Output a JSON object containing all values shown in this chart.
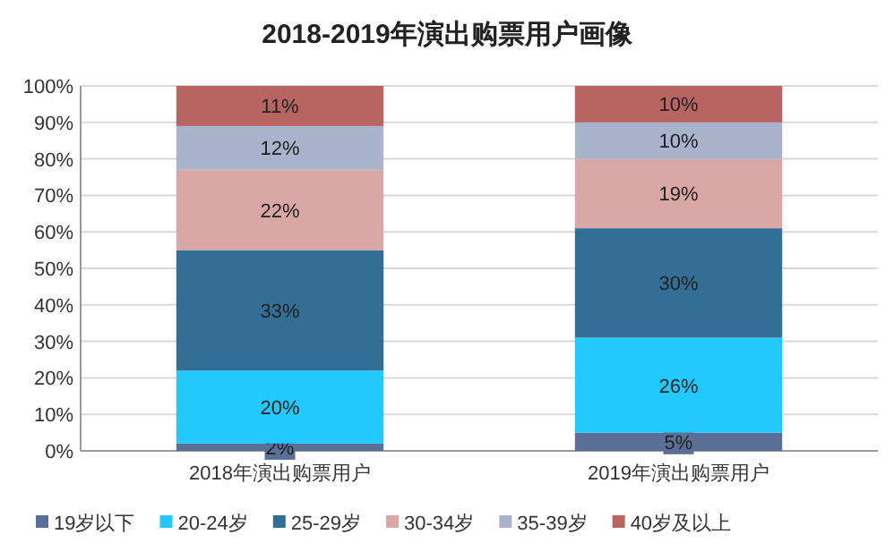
{
  "chart_data": {
    "type": "bar",
    "stacked": true,
    "title": "2018-2019年演出购票用户画像",
    "categories": [
      "2018年演出购票用户",
      "2019年演出购票用户"
    ],
    "series": [
      {
        "name": "19岁以下",
        "color": "#5a6f96",
        "values": [
          2,
          5
        ],
        "value_labels": [
          "2%",
          "5%"
        ]
      },
      {
        "name": "20-24岁",
        "color": "#22c8ff",
        "values": [
          20,
          26
        ],
        "value_labels": [
          "20%",
          "26%"
        ]
      },
      {
        "name": "25-29岁",
        "color": "#336f94",
        "values": [
          33,
          30
        ],
        "value_labels": [
          "33%",
          "30%"
        ]
      },
      {
        "name": "30-34岁",
        "color": "#d9a7a6",
        "values": [
          22,
          19
        ],
        "value_labels": [
          "22%",
          "19%"
        ]
      },
      {
        "name": "35-39岁",
        "color": "#aab3cc",
        "values": [
          12,
          10
        ],
        "value_labels": [
          "12%",
          "10%"
        ]
      },
      {
        "name": "40岁及以上",
        "color": "#b86463",
        "values": [
          11,
          10
        ],
        "value_labels": [
          "11%",
          "10%"
        ]
      }
    ],
    "ylim": [
      0,
      100
    ],
    "yticks": [
      {
        "value": 0,
        "label": "0%"
      },
      {
        "value": 10,
        "label": "10%"
      },
      {
        "value": 20,
        "label": "20%"
      },
      {
        "value": 30,
        "label": "30%"
      },
      {
        "value": 40,
        "label": "40%"
      },
      {
        "value": 50,
        "label": "50%"
      },
      {
        "value": 60,
        "label": "60%"
      },
      {
        "value": 70,
        "label": "70%"
      },
      {
        "value": 80,
        "label": "80%"
      },
      {
        "value": 90,
        "label": "90%"
      },
      {
        "value": 100,
        "label": "100%"
      }
    ],
    "grid": "y",
    "legend": "bottom"
  }
}
